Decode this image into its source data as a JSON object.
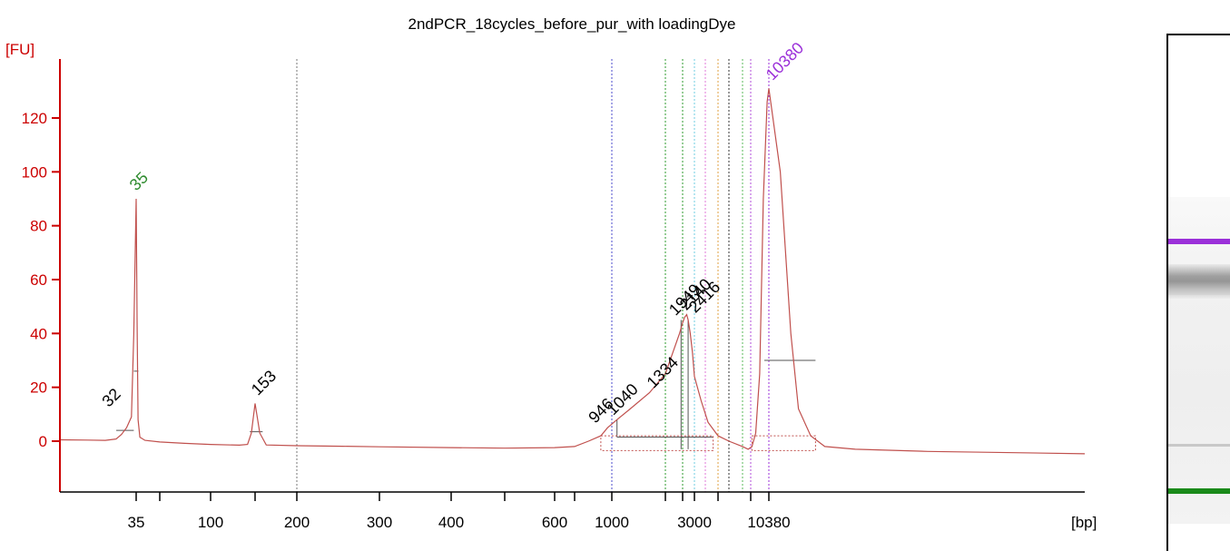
{
  "chart_data": {
    "type": "line",
    "title": "2ndPCR_18cycles_before_pur_with loadingDye",
    "ylabel": "[FU]",
    "xlabel": "[bp]",
    "ylim": [
      -20,
      140
    ],
    "y_ticks": [
      0,
      20,
      40,
      60,
      80,
      100,
      120
    ],
    "x_axis_scale": "ladder (non-linear, bp)",
    "x_ticks": [
      {
        "label": "35",
        "bp": 35
      },
      {
        "label": "",
        "bp": 50
      },
      {
        "label": "100",
        "bp": 100
      },
      {
        "label": "",
        "bp": 150
      },
      {
        "label": "200",
        "bp": 200
      },
      {
        "label": "300",
        "bp": 300
      },
      {
        "label": "400",
        "bp": 400
      },
      {
        "label": "",
        "bp": 500
      },
      {
        "label": "600",
        "bp": 600
      },
      {
        "label": "",
        "bp": 700
      },
      {
        "label": "1000",
        "bp": 1000
      },
      {
        "label": "",
        "bp": 1500
      },
      {
        "label": "",
        "bp": 2000
      },
      {
        "label": "3000",
        "bp": 3000
      },
      {
        "label": "",
        "bp": 4000
      },
      {
        "label": "",
        "bp": 7000
      },
      {
        "label": "10380",
        "bp": 10380
      }
    ],
    "reference_lines_bp": [
      200,
      1000,
      1500,
      2000,
      3000,
      3500,
      4000,
      4500,
      5500,
      7000,
      10380
    ],
    "grid": false,
    "series": [
      {
        "color": "#c0504d",
        "points": [
          [
            22,
            0.5
          ],
          [
            26,
            0.4
          ],
          [
            29,
            0.3
          ],
          [
            31,
            0.8
          ],
          [
            32,
            2.5
          ],
          [
            33,
            5
          ],
          [
            34,
            9
          ],
          [
            34.5,
            40
          ],
          [
            35,
            90
          ],
          [
            35.5,
            45
          ],
          [
            36,
            8
          ],
          [
            37,
            1.5
          ],
          [
            40,
            0.3
          ],
          [
            50,
            -0.3
          ],
          [
            70,
            -0.8
          ],
          [
            100,
            -1.2
          ],
          [
            130,
            -1.5
          ],
          [
            140,
            -1.2
          ],
          [
            145,
            3
          ],
          [
            150,
            14
          ],
          [
            155,
            3
          ],
          [
            162,
            -1.4
          ],
          [
            200,
            -1.7
          ],
          [
            250,
            -1.9
          ],
          [
            300,
            -2.1
          ],
          [
            400,
            -2.4
          ],
          [
            500,
            -2.6
          ],
          [
            600,
            -2.4
          ],
          [
            700,
            -2.0
          ],
          [
            800,
            0
          ],
          [
            900,
            2
          ],
          [
            960,
            5
          ],
          [
            1040,
            8
          ],
          [
            1150,
            12
          ],
          [
            1330,
            18
          ],
          [
            1500,
            25
          ],
          [
            1700,
            33
          ],
          [
            1900,
            40
          ],
          [
            2000,
            44
          ],
          [
            2140,
            46
          ],
          [
            2300,
            47
          ],
          [
            2416,
            45
          ],
          [
            2600,
            40
          ],
          [
            2800,
            33
          ],
          [
            3000,
            24
          ],
          [
            3300,
            15
          ],
          [
            3600,
            7
          ],
          [
            4000,
            2
          ],
          [
            4500,
            0
          ],
          [
            5500,
            -2
          ],
          [
            6500,
            -3
          ],
          [
            7200,
            -2
          ],
          [
            7800,
            3
          ],
          [
            8500,
            25
          ],
          [
            9200,
            90
          ],
          [
            10000,
            126
          ],
          [
            10380,
            131
          ],
          [
            10800,
            100
          ],
          [
            11200,
            40
          ],
          [
            11500,
            12
          ],
          [
            12000,
            2
          ],
          [
            12600,
            -2
          ],
          [
            14000,
            -3
          ],
          [
            18000,
            -3.8
          ],
          [
            25000,
            -4.3
          ],
          [
            31000,
            -4.7
          ]
        ]
      }
    ],
    "peak_labels": [
      {
        "label": "35",
        "bp": 35,
        "fu": 90,
        "color": "#2e8b2e"
      },
      {
        "label": "32",
        "bp": 32,
        "fu": 9,
        "color": "#000000"
      },
      {
        "label": "153",
        "bp": 153,
        "fu": 14,
        "color": "#000000"
      },
      {
        "label": "946",
        "bp": 946,
        "fu": 5,
        "color": "#000000"
      },
      {
        "label": "1040",
        "bp": 1040,
        "fu": 8,
        "color": "#000000"
      },
      {
        "label": "1334",
        "bp": 1334,
        "fu": 18,
        "color": "#000000"
      },
      {
        "label": "1949",
        "bp": 1949,
        "fu": 45,
        "color": "#000000"
      },
      {
        "label": "2140",
        "bp": 2140,
        "fu": 47,
        "color": "#000000"
      },
      {
        "label": "2416",
        "bp": 2416,
        "fu": 46,
        "color": "#000000"
      },
      {
        "label": "10380",
        "bp": 10380,
        "fu": 131,
        "color": "#9b30d9"
      }
    ],
    "axis_color": "#cc0000"
  },
  "gel": {
    "upper_marker_color": "#9b30d9",
    "lower_marker_color": "#1a8a1a"
  }
}
